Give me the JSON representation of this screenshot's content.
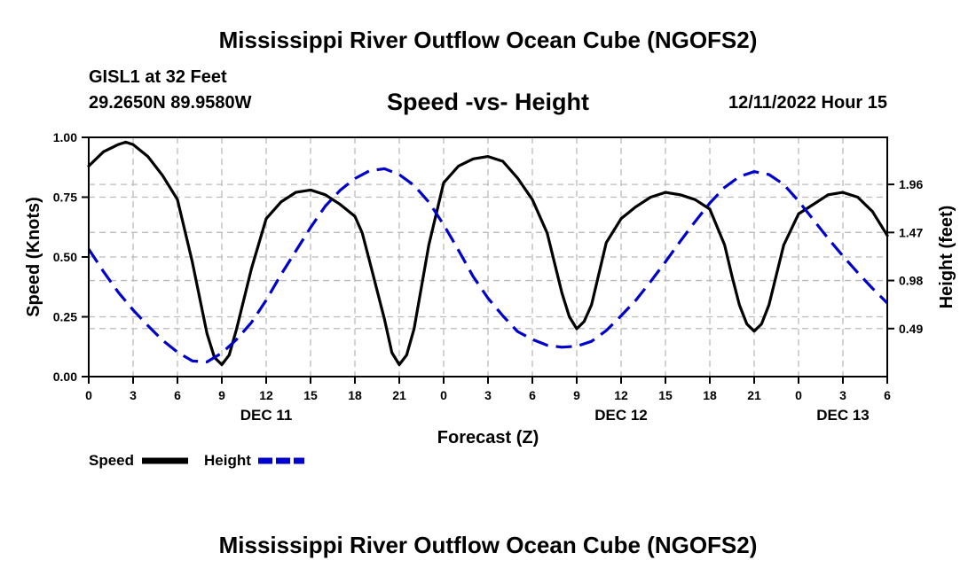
{
  "header": {
    "title": "Mississippi River Outflow Ocean Cube (NGOFS2)",
    "station": "GISL1 at 32 Feet",
    "coords": "29.2650N  89.9580W",
    "subtitle": "Speed -vs- Height",
    "datetime": "12/11/2022 Hour 15"
  },
  "footer": {
    "title": "Mississippi River Outflow Ocean Cube (NGOFS2)"
  },
  "colors": {
    "speed": "#000000",
    "height": "#0000cc",
    "grid": "#bbbbbb"
  },
  "chart_data": {
    "type": "line",
    "xlabel": "Forecast (Z)",
    "ylabel": "Speed (Knots)",
    "y2label": "Height (feet)",
    "xlim": [
      0,
      54
    ],
    "x_ticks": [
      0,
      3,
      6,
      9,
      12,
      15,
      18,
      21,
      24,
      27,
      30,
      33,
      36,
      39,
      42,
      45,
      48,
      51,
      54
    ],
    "x_tick_labels": [
      "0",
      "3",
      "6",
      "9",
      "12",
      "15",
      "18",
      "21",
      "0",
      "3",
      "6",
      "9",
      "12",
      "15",
      "18",
      "21",
      "0",
      "3",
      "6"
    ],
    "day_labels": [
      {
        "x": 12,
        "label": "DEC 11"
      },
      {
        "x": 36,
        "label": "DEC 12"
      },
      {
        "x": 51,
        "label": "DEC 13"
      }
    ],
    "ylim": [
      0,
      1.0
    ],
    "y_ticks": [
      0,
      0.25,
      0.5,
      0.75,
      1.0
    ],
    "y_tick_labels": [
      "0.00",
      "0.25",
      "0.50",
      "0.75",
      "1.00"
    ],
    "y2lim": [
      0,
      2.44
    ],
    "y2_ticks": [
      0.49,
      0.98,
      1.47,
      1.96
    ],
    "y2_tick_labels": [
      "0.49",
      "0.98",
      "1.47",
      "1.96"
    ],
    "series": [
      {
        "name": "Speed",
        "axis": "left",
        "x": [
          0,
          1,
          2,
          2.5,
          3,
          4,
          5,
          6,
          7,
          8,
          8.5,
          9,
          9.5,
          10,
          11,
          12,
          13,
          14,
          15,
          16,
          17,
          18,
          18.5,
          19,
          20,
          20.5,
          21,
          21.5,
          22,
          23,
          24,
          25,
          26,
          27,
          28,
          29,
          30,
          31,
          32,
          32.5,
          33,
          33.5,
          34,
          35,
          36,
          37,
          38,
          39,
          40,
          41,
          42,
          43,
          43.5,
          44,
          44.5,
          45,
          45.5,
          46,
          47,
          48,
          49,
          50,
          51,
          52,
          53,
          54
        ],
        "values": [
          0.88,
          0.94,
          0.97,
          0.98,
          0.97,
          0.92,
          0.84,
          0.74,
          0.48,
          0.18,
          0.08,
          0.05,
          0.09,
          0.2,
          0.45,
          0.66,
          0.73,
          0.77,
          0.78,
          0.76,
          0.72,
          0.67,
          0.6,
          0.48,
          0.24,
          0.1,
          0.05,
          0.09,
          0.2,
          0.55,
          0.81,
          0.88,
          0.91,
          0.92,
          0.9,
          0.83,
          0.74,
          0.6,
          0.35,
          0.25,
          0.2,
          0.23,
          0.3,
          0.56,
          0.66,
          0.71,
          0.75,
          0.77,
          0.76,
          0.74,
          0.7,
          0.55,
          0.42,
          0.3,
          0.22,
          0.19,
          0.22,
          0.3,
          0.55,
          0.68,
          0.72,
          0.76,
          0.77,
          0.75,
          0.69,
          0.59
        ]
      },
      {
        "name": "Height",
        "axis": "right",
        "x": [
          0,
          1,
          2,
          3,
          4,
          5,
          6,
          7,
          8,
          9,
          10,
          11,
          12,
          13,
          14,
          15,
          16,
          17,
          18,
          19,
          20,
          21,
          22,
          23,
          24,
          25,
          26,
          27,
          28,
          29,
          30,
          31,
          32,
          33,
          34,
          35,
          36,
          37,
          38,
          39,
          40,
          41,
          42,
          43,
          44,
          45,
          46,
          47,
          48,
          49,
          50,
          51,
          52,
          53,
          54
        ],
        "values": [
          1.3,
          1.07,
          0.86,
          0.68,
          0.52,
          0.37,
          0.25,
          0.16,
          0.15,
          0.24,
          0.38,
          0.55,
          0.78,
          1.04,
          1.28,
          1.52,
          1.74,
          1.9,
          2.02,
          2.1,
          2.12,
          2.06,
          1.95,
          1.78,
          1.55,
          1.29,
          1.02,
          0.8,
          0.62,
          0.46,
          0.38,
          0.32,
          0.3,
          0.31,
          0.36,
          0.47,
          0.62,
          0.78,
          0.97,
          1.17,
          1.38,
          1.58,
          1.77,
          1.93,
          2.04,
          2.09,
          2.06,
          1.96,
          1.79,
          1.6,
          1.41,
          1.23,
          1.06,
          0.9,
          0.75
        ]
      }
    ],
    "legend": [
      {
        "name": "Speed",
        "label": "Speed"
      },
      {
        "name": "Height",
        "label": "Height"
      }
    ]
  }
}
